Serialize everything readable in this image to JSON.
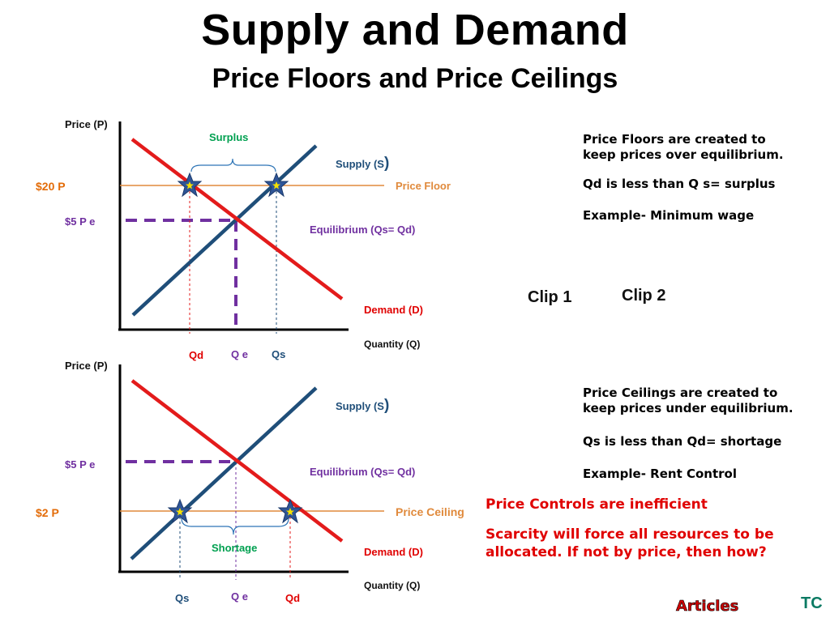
{
  "title": "Supply and Demand",
  "subtitle": "Price Floors and Price Ceilings",
  "top_graph": {
    "y_axis_label": "Price (P)",
    "x_axis_label": "Quantity (Q)",
    "price_floor_value": "$20 P",
    "equilibrium_price": "$5 P e",
    "surplus_label": "Surplus",
    "supply_label": "Supply (S",
    "supply_paren": ")",
    "price_floor_label": "Price Floor",
    "equilibrium_label": "Equilibrium (Qs= Qd)",
    "demand_label": "Demand (D)",
    "qd_label": "Qd",
    "qe_label": "Q e",
    "qs_label": "Qs"
  },
  "bottom_graph": {
    "y_axis_label": "Price (P)",
    "x_axis_label": "Quantity (Q)",
    "equilibrium_price": "$5 P e",
    "price_ceiling_value": "$2 P",
    "supply_label": "Supply (S",
    "supply_paren": ")",
    "equilibrium_label": "Equilibrium (Qs= Qd)",
    "price_ceiling_label": "Price Ceiling",
    "shortage_label": "Shortage",
    "demand_label": "Demand (D)",
    "qs_label": "Qs",
    "qe_label": "Q e",
    "qd_label": "Qd"
  },
  "floor_notes": {
    "line1": "Price Floors are created to",
    "line2": "keep prices over equilibrium.",
    "line3": "Qd is less than Q s= surplus",
    "line4": "Example- Minimum wage"
  },
  "ceiling_notes": {
    "line1": "Price Ceilings are created to",
    "line2": "keep prices under equilibrium.",
    "line3": "Qs is less than Qd= shortage",
    "line4": "Example- Rent Control"
  },
  "controls_notes": {
    "line1": "Price Controls are inefficient",
    "line2": "Scarcity will force all resources to be",
    "line3": "allocated.  If not by price, then how?"
  },
  "links": {
    "clip1": "Clip 1",
    "clip2": "Clip 2",
    "articles": "Articles",
    "tc": "TC"
  },
  "colors": {
    "supply": "#1f4e79",
    "demand": "#e31b1b",
    "price_line": "#e08a3c",
    "equilibrium_dash": "#7030a0",
    "green_label": "#00a050",
    "red_label": "#e00000",
    "star_fill": "#2f5597",
    "star_center": "#f5e000"
  }
}
